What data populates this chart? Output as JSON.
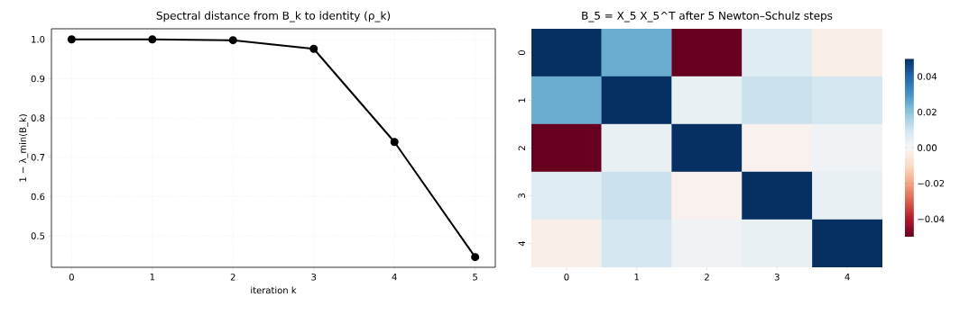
{
  "chart_data": [
    {
      "type": "line",
      "title": "Spectral distance from B_k to identity (ρ_k)",
      "xlabel": "iteration k",
      "ylabel": "1 − λ_min(B_k)",
      "x": [
        0,
        1,
        2,
        3,
        4,
        5
      ],
      "series": [
        {
          "color": "#000000",
          "values": [
            1.0,
            1.0,
            0.998,
            0.976,
            0.739,
            0.446
          ]
        }
      ],
      "xlim": [
        -0.25,
        5.25
      ],
      "ylim": [
        0.42,
        1.027
      ],
      "xticks": [
        0,
        1,
        2,
        3,
        4,
        5
      ],
      "yticks": [
        {
          "value": 0.5,
          "label": "0.5"
        },
        {
          "value": 0.6,
          "label": "0.6"
        },
        {
          "value": 0.7,
          "label": "0.7"
        },
        {
          "value": 0.8,
          "label": "0.8"
        },
        {
          "value": 0.9,
          "label": "0.9"
        },
        {
          "value": 1.0,
          "label": "1.0"
        }
      ],
      "grid": true,
      "marker": "circle",
      "line_style": "solid"
    },
    {
      "type": "heatmap",
      "title": "B_5 = X_5 X_5^T after 5 Newton–Schulz steps",
      "categories": [
        "0",
        "1",
        "2",
        "3",
        "4"
      ],
      "y_categories": [
        "0",
        "1",
        "2",
        "3",
        "4"
      ],
      "cells": [
        [
          0.05,
          0.025,
          -0.05,
          0.006,
          -0.003
        ],
        [
          0.025,
          0.05,
          0.004,
          0.011,
          0.009
        ],
        [
          -0.05,
          0.004,
          0.05,
          -0.002,
          0.002
        ],
        [
          0.006,
          0.011,
          -0.002,
          0.05,
          0.004
        ],
        [
          -0.003,
          0.009,
          0.002,
          0.004,
          0.05
        ]
      ],
      "clim": [
        -0.05,
        0.05
      ],
      "cticks": [
        {
          "value": -0.04,
          "label": "−0.04"
        },
        {
          "value": -0.02,
          "label": "−0.02"
        },
        {
          "value": 0.0,
          "label": "0.00"
        },
        {
          "value": 0.02,
          "label": "0.02"
        },
        {
          "value": 0.04,
          "label": "0.04"
        }
      ]
    }
  ]
}
